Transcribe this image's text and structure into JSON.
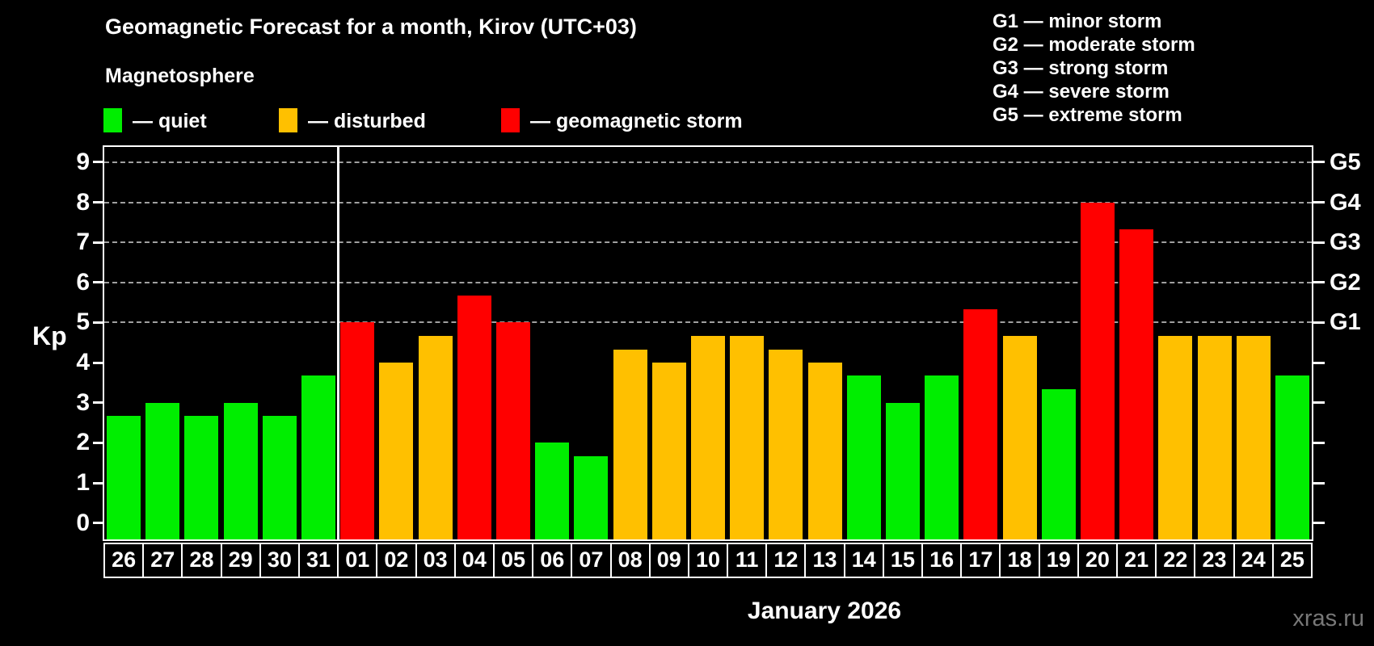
{
  "title": "Geomagnetic Forecast for a month, Kirov (UTC+03)",
  "subtitle": "Magnetosphere",
  "legend": {
    "quiet": "— quiet",
    "disturbed": "— disturbed",
    "storm": "— geomagnetic storm"
  },
  "g_legend": [
    "G1 — minor storm",
    "G2 — moderate storm",
    "G3 — strong storm",
    "G4 — severe storm",
    "G5 — extreme storm"
  ],
  "colors": {
    "quiet": "#00ee00",
    "disturbed": "#ffc000",
    "storm": "#ff0000",
    "axis": "#ffffff",
    "grid": "#a0a0a0",
    "background": "#000000",
    "watermark": "#787878"
  },
  "y_axis": {
    "label": "Kp",
    "ticks": [
      0,
      1,
      2,
      3,
      4,
      5,
      6,
      7,
      8,
      9
    ]
  },
  "right_axis": {
    "labels": [
      {
        "text": "G1",
        "kp": 5
      },
      {
        "text": "G2",
        "kp": 6
      },
      {
        "text": "G3",
        "kp": 7
      },
      {
        "text": "G4",
        "kp": 8
      },
      {
        "text": "G5",
        "kp": 9
      }
    ]
  },
  "x_axis_label": "January 2026",
  "watermark": "xras.ru",
  "chart_data": {
    "type": "bar",
    "title": "Geomagnetic Forecast for a month, Kirov (UTC+03)",
    "xlabel": "January 2026",
    "ylabel": "Kp",
    "ylim": [
      -0.41,
      9.38
    ],
    "grid_kp": [
      5,
      6,
      7,
      8,
      9
    ],
    "divider_after_index": 5,
    "categories": [
      "26",
      "27",
      "28",
      "29",
      "30",
      "31",
      "01",
      "02",
      "03",
      "04",
      "05",
      "06",
      "07",
      "08",
      "09",
      "10",
      "11",
      "12",
      "13",
      "14",
      "15",
      "16",
      "17",
      "18",
      "19",
      "20",
      "21",
      "22",
      "23",
      "24",
      "25"
    ],
    "values": [
      2.67,
      3,
      2.67,
      3,
      2.67,
      3.67,
      5,
      4,
      4.67,
      5.67,
      5,
      2,
      1.67,
      4.33,
      4,
      4.67,
      4.67,
      4.33,
      4,
      3.67,
      3,
      3.67,
      5.33,
      4.67,
      3.33,
      8,
      7.33,
      4.67,
      4.67,
      4.67,
      3.67
    ],
    "statuses": [
      "quiet",
      "quiet",
      "quiet",
      "quiet",
      "quiet",
      "quiet",
      "storm",
      "disturbed",
      "disturbed",
      "storm",
      "storm",
      "quiet",
      "quiet",
      "disturbed",
      "disturbed",
      "disturbed",
      "disturbed",
      "disturbed",
      "disturbed",
      "quiet",
      "quiet",
      "quiet",
      "storm",
      "disturbed",
      "quiet",
      "storm",
      "storm",
      "disturbed",
      "disturbed",
      "disturbed",
      "quiet"
    ]
  }
}
